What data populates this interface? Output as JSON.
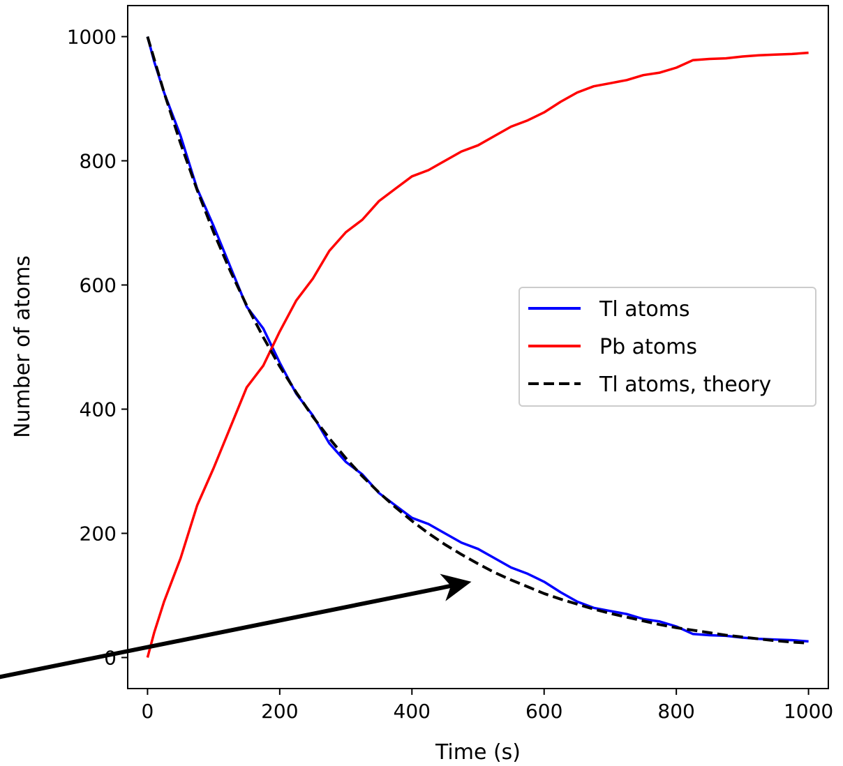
{
  "chart_data": {
    "type": "line",
    "title": "",
    "xlabel": "Time (s)",
    "ylabel": "Number of atoms",
    "xlim": [
      -30,
      1030
    ],
    "ylim": [
      -50,
      1050
    ],
    "xticks": [
      0,
      200,
      400,
      600,
      800,
      1000
    ],
    "yticks": [
      0,
      200,
      400,
      600,
      800,
      1000
    ],
    "grid": false,
    "legend_position": "center-right",
    "series": [
      {
        "name": "Tl atoms",
        "color": "#0000ff",
        "style": "solid",
        "x": [
          0,
          10,
          25,
          50,
          75,
          100,
          125,
          150,
          175,
          200,
          225,
          250,
          275,
          300,
          325,
          350,
          375,
          400,
          425,
          450,
          475,
          500,
          525,
          550,
          575,
          600,
          625,
          650,
          675,
          700,
          725,
          750,
          775,
          800,
          825,
          850,
          875,
          900,
          925,
          950,
          975,
          1000
        ],
        "y": [
          1000,
          960,
          910,
          840,
          755,
          695,
          630,
          565,
          530,
          475,
          425,
          390,
          345,
          315,
          295,
          265,
          245,
          225,
          215,
          200,
          185,
          175,
          160,
          145,
          135,
          122,
          105,
          90,
          80,
          75,
          70,
          62,
          58,
          50,
          38,
          36,
          35,
          32,
          30,
          29,
          28,
          26
        ]
      },
      {
        "name": "Pb atoms",
        "color": "#ff0000",
        "style": "solid",
        "x": [
          0,
          10,
          25,
          50,
          75,
          100,
          125,
          150,
          175,
          200,
          225,
          250,
          275,
          300,
          325,
          350,
          375,
          400,
          425,
          450,
          475,
          500,
          525,
          550,
          575,
          600,
          625,
          650,
          675,
          700,
          725,
          750,
          775,
          800,
          825,
          850,
          875,
          900,
          925,
          950,
          975,
          1000
        ],
        "y": [
          0,
          40,
          90,
          160,
          245,
          305,
          370,
          435,
          470,
          525,
          575,
          610,
          655,
          685,
          705,
          735,
          755,
          775,
          785,
          800,
          815,
          825,
          840,
          855,
          865,
          878,
          895,
          910,
          920,
          925,
          930,
          938,
          942,
          950,
          962,
          964,
          965,
          968,
          970,
          971,
          972,
          974
        ]
      },
      {
        "name": "Tl atoms, theory",
        "color": "#000000",
        "style": "dashed",
        "function": "1000 * 2^(-t/183.2)",
        "x": [
          0,
          25,
          50,
          75,
          100,
          125,
          150,
          175,
          200,
          225,
          250,
          275,
          300,
          325,
          350,
          375,
          400,
          425,
          450,
          475,
          500,
          525,
          550,
          575,
          600,
          625,
          650,
          675,
          700,
          725,
          750,
          775,
          800,
          825,
          850,
          875,
          900,
          925,
          950,
          975,
          1000
        ],
        "y": [
          1000,
          910,
          828,
          753,
          685,
          623,
          567,
          516,
          469,
          427,
          388,
          353,
          321,
          292,
          266,
          242,
          220,
          200,
          182,
          166,
          151,
          137,
          125,
          114,
          103,
          94,
          86,
          78,
          71,
          65,
          59,
          53,
          48,
          44,
          40,
          36,
          33,
          30,
          27,
          25,
          23
        ]
      }
    ],
    "annotation": {
      "type": "arrow",
      "from": [
        -250,
        -37
      ],
      "to": [
        490,
        122
      ],
      "color": "#000000"
    }
  }
}
